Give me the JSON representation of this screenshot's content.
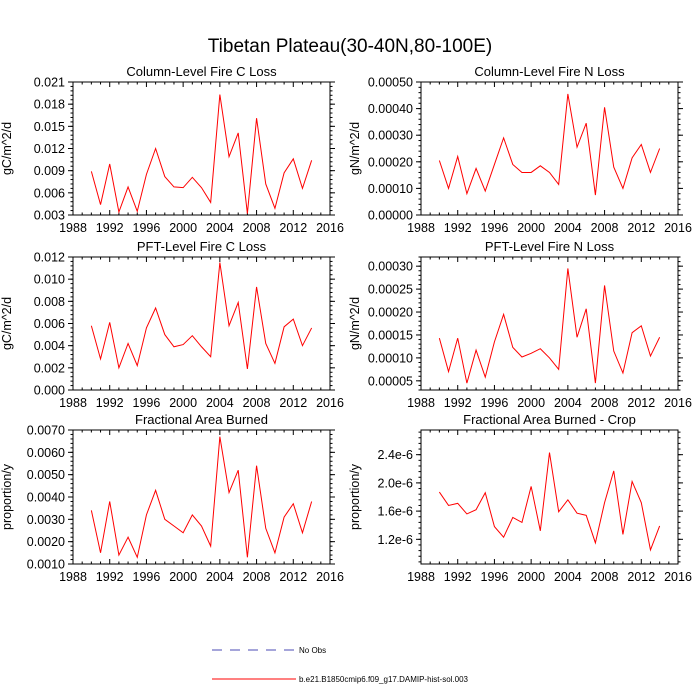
{
  "figure": {
    "title": "Tibetan Plateau(30-40N,80-100E)",
    "line_color": "#ff0000",
    "obs_color": "#4b4bb4"
  },
  "legend": {
    "obs_label": "No Obs",
    "model_label": "b.e21.B1850cmip6.f09_g17.DAMIP-hist-sol.003"
  },
  "chart_data": [
    {
      "type": "line",
      "title": "Column-Level Fire C Loss",
      "ylabel": "gC/m^2/d",
      "xlim": [
        1988,
        2016
      ],
      "xticks": [
        1988,
        1992,
        1996,
        2000,
        2004,
        2008,
        2012,
        2016
      ],
      "xtick_labels": [
        "1988",
        "1992",
        "1996",
        "2000",
        "2004",
        "2008",
        "2012",
        "2016"
      ],
      "ylim": [
        0.003,
        0.021
      ],
      "yticks": [
        0.003,
        0.006,
        0.009,
        0.012,
        0.015,
        0.018,
        0.021
      ],
      "ytick_labels": [
        "0.003",
        "0.006",
        "0.009",
        "0.012",
        "0.015",
        "0.018",
        "0.021"
      ],
      "x": [
        1990,
        1991,
        1992,
        1993,
        1994,
        1995,
        1996,
        1997,
        1998,
        1999,
        2000,
        2001,
        2002,
        2003,
        2004,
        2005,
        2006,
        2007,
        2008,
        2009,
        2010,
        2011,
        2012,
        2013,
        2014
      ],
      "values": [
        0.0089,
        0.0044,
        0.0099,
        0.0034,
        0.0068,
        0.0035,
        0.0085,
        0.012,
        0.0082,
        0.0068,
        0.0067,
        0.0081,
        0.0067,
        0.0047,
        0.0193,
        0.0109,
        0.0141,
        0.0032,
        0.0161,
        0.0072,
        0.0039,
        0.0087,
        0.0106,
        0.0066,
        0.0104
      ]
    },
    {
      "type": "line",
      "title": "Column-Level Fire N Loss",
      "ylabel": "gN/m^2/d",
      "xlim": [
        1988,
        2016
      ],
      "xticks": [
        1988,
        1992,
        1996,
        2000,
        2004,
        2008,
        2012,
        2016
      ],
      "xtick_labels": [
        "1988",
        "1992",
        "1996",
        "2000",
        "2004",
        "2008",
        "2012",
        "2016"
      ],
      "ylim": [
        0.0,
        0.0005
      ],
      "yticks": [
        0.0,
        0.0001,
        0.0002,
        0.0003,
        0.0004,
        0.0005
      ],
      "ytick_labels": [
        "0.00000",
        "0.00010",
        "0.00020",
        "0.00030",
        "0.00040",
        "0.00050"
      ],
      "x": [
        1990,
        1991,
        1992,
        1993,
        1994,
        1995,
        1996,
        1997,
        1998,
        1999,
        2000,
        2001,
        2002,
        2003,
        2004,
        2005,
        2006,
        2007,
        2008,
        2009,
        2010,
        2011,
        2012,
        2013,
        2014
      ],
      "values": [
        0.000205,
        0.0001,
        0.00022,
        8e-05,
        0.000175,
        9e-05,
        0.00019,
        0.00029,
        0.00019,
        0.00016,
        0.00016,
        0.000185,
        0.00016,
        0.000115,
        0.000455,
        0.000255,
        0.000345,
        7.5e-05,
        0.000405,
        0.00018,
        0.0001,
        0.000215,
        0.000265,
        0.00016,
        0.00025
      ]
    },
    {
      "type": "line",
      "title": "PFT-Level Fire C Loss",
      "ylabel": "gC/m^2/d",
      "xlim": [
        1988,
        2016
      ],
      "xticks": [
        1988,
        1992,
        1996,
        2000,
        2004,
        2008,
        2012,
        2016
      ],
      "xtick_labels": [
        "1988",
        "1992",
        "1996",
        "2000",
        "2004",
        "2008",
        "2012",
        "2016"
      ],
      "ylim": [
        0.0,
        0.012
      ],
      "yticks": [
        0.0,
        0.002,
        0.004,
        0.006,
        0.008,
        0.01,
        0.012
      ],
      "ytick_labels": [
        "0.000",
        "0.002",
        "0.004",
        "0.006",
        "0.008",
        "0.010",
        "0.012"
      ],
      "x": [
        1990,
        1991,
        1992,
        1993,
        1994,
        1995,
        1996,
        1997,
        1998,
        1999,
        2000,
        2001,
        2002,
        2003,
        2004,
        2005,
        2006,
        2007,
        2008,
        2009,
        2010,
        2011,
        2012,
        2013,
        2014
      ],
      "values": [
        0.0058,
        0.0028,
        0.0061,
        0.002,
        0.0042,
        0.0022,
        0.0056,
        0.0074,
        0.005,
        0.0039,
        0.0041,
        0.0049,
        0.0039,
        0.003,
        0.0115,
        0.0058,
        0.0079,
        0.0019,
        0.0093,
        0.0042,
        0.0024,
        0.0057,
        0.0064,
        0.004,
        0.0056
      ]
    },
    {
      "type": "line",
      "title": "PFT-Level Fire N Loss",
      "ylabel": "gN/m^2/d",
      "xlim": [
        1988,
        2016
      ],
      "xticks": [
        1988,
        1992,
        1996,
        2000,
        2004,
        2008,
        2012,
        2016
      ],
      "xtick_labels": [
        "1988",
        "1992",
        "1996",
        "2000",
        "2004",
        "2008",
        "2012",
        "2016"
      ],
      "ylim": [
        3e-05,
        0.00032
      ],
      "yticks": [
        5e-05,
        0.0001,
        0.00015,
        0.0002,
        0.00025,
        0.0003
      ],
      "ytick_labels": [
        "0.00005",
        "0.00010",
        "0.00015",
        "0.00020",
        "0.00025",
        "0.00030"
      ],
      "x": [
        1990,
        1991,
        1992,
        1993,
        1994,
        1995,
        1996,
        1997,
        1998,
        1999,
        2000,
        2001,
        2002,
        2003,
        2004,
        2005,
        2006,
        2007,
        2008,
        2009,
        2010,
        2011,
        2012,
        2013,
        2014
      ],
      "values": [
        0.000143,
        7e-05,
        0.000143,
        4.5e-05,
        0.000117,
        5.8e-05,
        0.000135,
        0.000195,
        0.000123,
        0.000102,
        0.00011,
        0.00012,
        0.0001,
        7.5e-05,
        0.000295,
        0.000145,
        0.000207,
        4.5e-05,
        0.000258,
        0.000115,
        6.7e-05,
        0.000155,
        0.00017,
        0.000104,
        0.000145
      ]
    },
    {
      "type": "line",
      "title": "Fractional Area Burned",
      "ylabel": "proportion/y",
      "xlim": [
        1988,
        2016
      ],
      "xticks": [
        1988,
        1992,
        1996,
        2000,
        2004,
        2008,
        2012,
        2016
      ],
      "xtick_labels": [
        "1988",
        "1992",
        "1996",
        "2000",
        "2004",
        "2008",
        "2012",
        "2016"
      ],
      "ylim": [
        0.001,
        0.007
      ],
      "yticks": [
        0.001,
        0.002,
        0.003,
        0.004,
        0.005,
        0.006,
        0.007
      ],
      "ytick_labels": [
        "0.0010",
        "0.0020",
        "0.0030",
        "0.0040",
        "0.0050",
        "0.0060",
        "0.0070"
      ],
      "x": [
        1990,
        1991,
        1992,
        1993,
        1994,
        1995,
        1996,
        1997,
        1998,
        1999,
        2000,
        2001,
        2002,
        2003,
        2004,
        2005,
        2006,
        2007,
        2008,
        2009,
        2010,
        2011,
        2012,
        2013,
        2014
      ],
      "values": [
        0.0034,
        0.0015,
        0.0038,
        0.0014,
        0.0022,
        0.0013,
        0.0032,
        0.0043,
        0.003,
        0.0027,
        0.0024,
        0.0032,
        0.0027,
        0.0018,
        0.0067,
        0.0042,
        0.0052,
        0.0013,
        0.0054,
        0.0026,
        0.0015,
        0.0031,
        0.0037,
        0.0024,
        0.0038
      ]
    },
    {
      "type": "line",
      "title": "Fractional Area Burned - Crop",
      "ylabel": "proportion/y",
      "xlim": [
        1988,
        2016
      ],
      "xticks": [
        1988,
        1992,
        1996,
        2000,
        2004,
        2008,
        2012,
        2016
      ],
      "xtick_labels": [
        "1988",
        "1992",
        "1996",
        "2000",
        "2004",
        "2008",
        "2012",
        "2016"
      ],
      "ylim": [
        8.5e-07,
        2.75e-06
      ],
      "yticks": [
        1.2e-06,
        1.6e-06,
        2e-06,
        2.4e-06
      ],
      "ytick_labels": [
        "1.2e-6",
        "1.6e-6",
        "2.0e-6",
        "2.4e-6"
      ],
      "x": [
        1990,
        1991,
        1992,
        1993,
        1994,
        1995,
        1996,
        1997,
        1998,
        1999,
        2000,
        2001,
        2002,
        2003,
        2004,
        2005,
        2006,
        2007,
        2008,
        2009,
        2010,
        2011,
        2012,
        2013,
        2014
      ],
      "values": [
        1.87e-06,
        1.68e-06,
        1.71e-06,
        1.56e-06,
        1.62e-06,
        1.86e-06,
        1.38e-06,
        1.23e-06,
        1.51e-06,
        1.44e-06,
        1.95e-06,
        1.32e-06,
        2.43e-06,
        1.59e-06,
        1.76e-06,
        1.57e-06,
        1.54e-06,
        1.15e-06,
        1.72e-06,
        2.17e-06,
        1.27e-06,
        2.02e-06,
        1.72e-06,
        1.05e-06,
        1.39e-06
      ]
    }
  ]
}
